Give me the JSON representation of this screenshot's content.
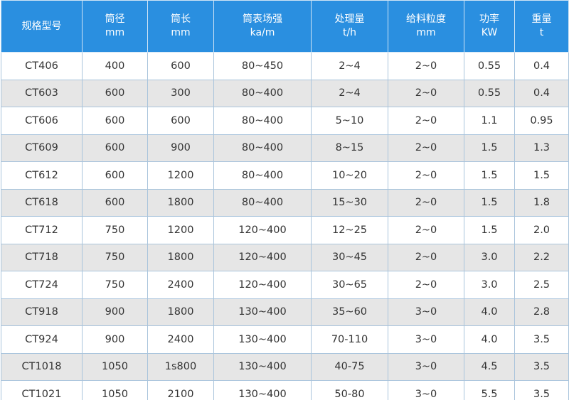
{
  "table": {
    "header": [
      [
        "规格型号"
      ],
      [
        "筒径",
        "mm"
      ],
      [
        "筒长",
        "mm"
      ],
      [
        "筒表场强",
        "ka/m"
      ],
      [
        "处理量",
        "t/h"
      ],
      [
        "给料粒度",
        "mm"
      ],
      [
        "功率",
        "KW"
      ],
      [
        "重量",
        "t"
      ]
    ],
    "rows": [
      [
        "CT406",
        "400",
        "600",
        "80~450",
        "2~4",
        "2~0",
        "0.55",
        "0.4"
      ],
      [
        "CT603",
        "600",
        "300",
        "80~400",
        "2~4",
        "2~0",
        "0.55",
        "0.4"
      ],
      [
        "CT606",
        "600",
        "600",
        "80~400",
        "5~10",
        "2~0",
        "1.1",
        "0.95"
      ],
      [
        "CT609",
        "600",
        "900",
        "80~400",
        "8~15",
        "2~0",
        "1.5",
        "1.3"
      ],
      [
        "CT612",
        "600",
        "1200",
        "80~400",
        "10~20",
        "2~0",
        "1.5",
        "1.5"
      ],
      [
        "CT618",
        "600",
        "1800",
        "80~400",
        "15~30",
        "2~0",
        "1.5",
        "1.8"
      ],
      [
        "CT712",
        "750",
        "1200",
        "120~400",
        "12~25",
        "2~0",
        "1.5",
        "2.0"
      ],
      [
        "CT718",
        "750",
        "1800",
        "120~400",
        "30~45",
        "2~0",
        "3.0",
        "2.2"
      ],
      [
        "CT724",
        "750",
        "2400",
        "120~400",
        "30~65",
        "2~0",
        "3.0",
        "2.5"
      ],
      [
        "CT918",
        "900",
        "1800",
        "130~400",
        "35~60",
        "3~0",
        "4.0",
        "2.8"
      ],
      [
        "CT924",
        "900",
        "2400",
        "130~400",
        "70-110",
        "3~0",
        "4.0",
        "3.5"
      ],
      [
        "CT1018",
        "1050",
        "1s800",
        "130~400",
        "40-75",
        "3~0",
        "4.5",
        "3.5"
      ],
      [
        "CT1021",
        "1050",
        "2100",
        "130~400",
        "50-80",
        "3~0",
        "5.5",
        "3.5"
      ]
    ]
  }
}
